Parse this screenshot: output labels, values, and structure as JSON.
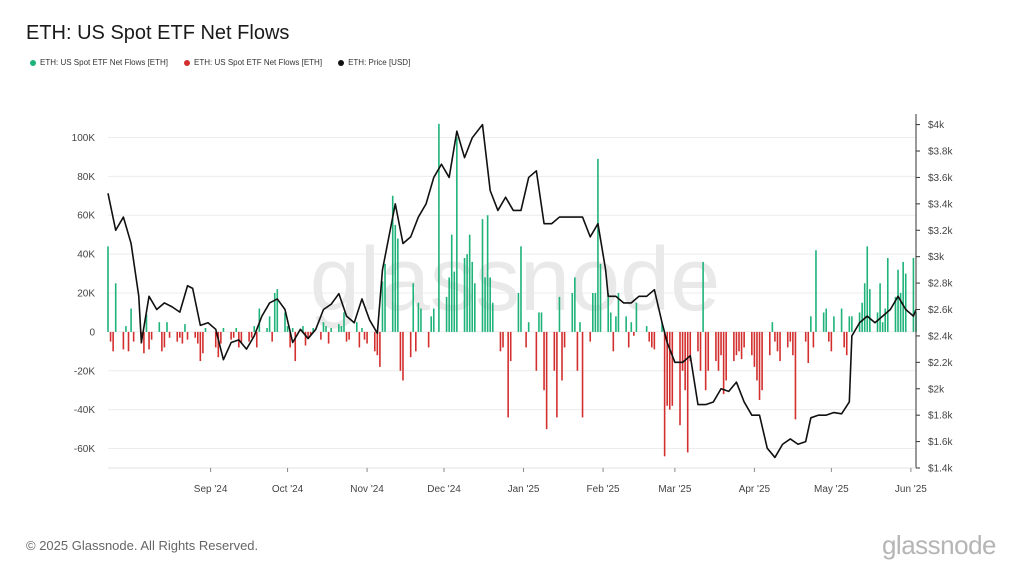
{
  "chart_data": {
    "type": "bar",
    "title": "ETH: US Spot ETF Net Flows",
    "legend": [
      {
        "name": "ETH: US Spot ETF Net Flows [ETH]",
        "color": "#1fb37a"
      },
      {
        "name": "ETH: US Spot ETF Net Flows [ETH]",
        "color": "#d32f2f"
      },
      {
        "name": "ETH: Price [USD]",
        "color": "#111111"
      }
    ],
    "legend_position": "top-left",
    "watermark": "glassnode",
    "grid": true,
    "y_left": {
      "ticks": [
        100000,
        80000,
        60000,
        40000,
        20000,
        0,
        -20000,
        -40000,
        -60000
      ],
      "tick_labels": [
        "100K",
        "80K",
        "60K",
        "40K",
        "20K",
        "0",
        "-20K",
        "-40K",
        "-60K"
      ],
      "range": [
        -70000,
        110000
      ]
    },
    "y_right": {
      "ticks": [
        4000,
        3800,
        3600,
        3400,
        3200,
        3000,
        2800,
        2600,
        2400,
        2200,
        2000,
        1800,
        1600,
        1400
      ],
      "tick_labels": [
        "$4k",
        "$3.8k",
        "$3.6k",
        "$3.4k",
        "$3.2k",
        "$3k",
        "$2.8k",
        "$2.6k",
        "$2.4k",
        "$2.2k",
        "$2k",
        "$1.8k",
        "$1.6k",
        "$1.4k"
      ],
      "range": [
        1400,
        4050
      ]
    },
    "x_axis": {
      "start": "2024-07-23",
      "end": "2025-06-03",
      "ticks": [
        {
          "date": "2024-09-01",
          "label": "Sep '24"
        },
        {
          "date": "2024-10-01",
          "label": "Oct '24"
        },
        {
          "date": "2024-11-01",
          "label": "Nov '24"
        },
        {
          "date": "2024-12-01",
          "label": "Dec '24"
        },
        {
          "date": "2025-01-01",
          "label": "Jan '25"
        },
        {
          "date": "2025-02-01",
          "label": "Feb '25"
        },
        {
          "date": "2025-03-01",
          "label": "Mar '25"
        },
        {
          "date": "2025-04-01",
          "label": "Apr '25"
        },
        {
          "date": "2025-05-01",
          "label": "May '25"
        },
        {
          "date": "2025-06-01",
          "label": "Jun '25"
        }
      ]
    },
    "flows": [
      [
        "2024-07-23",
        44000
      ],
      [
        "2024-07-24",
        -5000
      ],
      [
        "2024-07-25",
        -10000
      ],
      [
        "2024-07-26",
        25000
      ],
      [
        "2024-07-29",
        -9000
      ],
      [
        "2024-07-30",
        3000
      ],
      [
        "2024-07-31",
        -10000
      ],
      [
        "2024-08-01",
        12000
      ],
      [
        "2024-08-02",
        -5000
      ],
      [
        "2024-08-05",
        -6000
      ],
      [
        "2024-08-06",
        -11000
      ],
      [
        "2024-08-07",
        9000
      ],
      [
        "2024-08-08",
        -9000
      ],
      [
        "2024-08-09",
        -4000
      ],
      [
        "2024-08-12",
        5000
      ],
      [
        "2024-08-13",
        -10000
      ],
      [
        "2024-08-14",
        -8000
      ],
      [
        "2024-08-15",
        5000
      ],
      [
        "2024-08-16",
        -3000
      ],
      [
        "2024-08-19",
        -5000
      ],
      [
        "2024-08-20",
        -3000
      ],
      [
        "2024-08-21",
        -6000
      ],
      [
        "2024-08-22",
        4000
      ],
      [
        "2024-08-23",
        -4000
      ],
      [
        "2024-08-26",
        -3000
      ],
      [
        "2024-08-27",
        -6000
      ],
      [
        "2024-08-28",
        -15000
      ],
      [
        "2024-08-29",
        -11000
      ],
      [
        "2024-08-30",
        2000
      ],
      [
        "2024-09-03",
        -8000
      ],
      [
        "2024-09-04",
        -13000
      ],
      [
        "2024-09-05",
        -6000
      ],
      [
        "2024-09-06",
        2000
      ],
      [
        "2024-09-09",
        -4000
      ],
      [
        "2024-09-10",
        -3000
      ],
      [
        "2024-09-11",
        2000
      ],
      [
        "2024-09-12",
        -8000
      ],
      [
        "2024-09-13",
        -6000
      ],
      [
        "2024-09-16",
        -5000
      ],
      [
        "2024-09-17",
        -3000
      ],
      [
        "2024-09-18",
        3000
      ],
      [
        "2024-09-19",
        -8000
      ],
      [
        "2024-09-20",
        12000
      ],
      [
        "2024-09-23",
        2000
      ],
      [
        "2024-09-24",
        8000
      ],
      [
        "2024-09-25",
        -5000
      ],
      [
        "2024-09-26",
        20000
      ],
      [
        "2024-09-27",
        22000
      ],
      [
        "2024-09-30",
        10000
      ],
      [
        "2024-10-01",
        3000
      ],
      [
        "2024-10-02",
        -8000
      ],
      [
        "2024-10-03",
        2000
      ],
      [
        "2024-10-04",
        -15000
      ],
      [
        "2024-10-07",
        3000
      ],
      [
        "2024-10-08",
        -7000
      ],
      [
        "2024-10-09",
        -3000
      ],
      [
        "2024-10-10",
        -2000
      ],
      [
        "2024-10-11",
        2000
      ],
      [
        "2024-10-14",
        -4000
      ],
      [
        "2024-10-15",
        5000
      ],
      [
        "2024-10-16",
        3000
      ],
      [
        "2024-10-17",
        -6000
      ],
      [
        "2024-10-18",
        2000
      ],
      [
        "2024-10-21",
        4000
      ],
      [
        "2024-10-22",
        3000
      ],
      [
        "2024-10-23",
        10000
      ],
      [
        "2024-10-24",
        -5000
      ],
      [
        "2024-10-25",
        -4000
      ],
      [
        "2024-10-28",
        5000
      ],
      [
        "2024-10-29",
        -8000
      ],
      [
        "2024-10-30",
        2000
      ],
      [
        "2024-10-31",
        -4000
      ],
      [
        "2024-11-01",
        -6000
      ],
      [
        "2024-11-04",
        -10000
      ],
      [
        "2024-11-05",
        -12000
      ],
      [
        "2024-11-06",
        -18000
      ],
      [
        "2024-11-07",
        26000
      ],
      [
        "2024-11-08",
        35000
      ],
      [
        "2024-11-11",
        70000
      ],
      [
        "2024-11-12",
        55000
      ],
      [
        "2024-11-13",
        48000
      ],
      [
        "2024-11-14",
        -20000
      ],
      [
        "2024-11-15",
        -25000
      ],
      [
        "2024-11-18",
        -13000
      ],
      [
        "2024-11-19",
        25000
      ],
      [
        "2024-11-20",
        -10000
      ],
      [
        "2024-11-21",
        15000
      ],
      [
        "2024-11-22",
        12000
      ],
      [
        "2024-11-25",
        -8000
      ],
      [
        "2024-11-26",
        8000
      ],
      [
        "2024-11-27",
        12000
      ],
      [
        "2024-11-29",
        107000
      ],
      [
        "2024-12-02",
        18000
      ],
      [
        "2024-12-03",
        28000
      ],
      [
        "2024-12-04",
        50000
      ],
      [
        "2024-12-05",
        31000
      ],
      [
        "2024-12-06",
        100000
      ],
      [
        "2024-12-09",
        38000
      ],
      [
        "2024-12-10",
        40000
      ],
      [
        "2024-12-11",
        50000
      ],
      [
        "2024-12-12",
        36000
      ],
      [
        "2024-12-13",
        25000
      ],
      [
        "2024-12-16",
        58000
      ],
      [
        "2024-12-17",
        28000
      ],
      [
        "2024-12-18",
        60000
      ],
      [
        "2024-12-19",
        28000
      ],
      [
        "2024-12-20",
        15000
      ],
      [
        "2024-12-23",
        -10000
      ],
      [
        "2024-12-24",
        -8000
      ],
      [
        "2024-12-26",
        -44000
      ],
      [
        "2024-12-27",
        -15000
      ],
      [
        "2024-12-30",
        20000
      ],
      [
        "2024-12-31",
        44000
      ],
      [
        "2025-01-02",
        -8000
      ],
      [
        "2025-01-03",
        5000
      ],
      [
        "2025-01-06",
        -20000
      ],
      [
        "2025-01-07",
        10000
      ],
      [
        "2025-01-08",
        10000
      ],
      [
        "2025-01-09",
        -30000
      ],
      [
        "2025-01-10",
        -50000
      ],
      [
        "2025-01-13",
        -20000
      ],
      [
        "2025-01-14",
        -44000
      ],
      [
        "2025-01-15",
        18000
      ],
      [
        "2025-01-16",
        -25000
      ],
      [
        "2025-01-17",
        -8000
      ],
      [
        "2025-01-20",
        20000
      ],
      [
        "2025-01-21",
        28000
      ],
      [
        "2025-01-22",
        -20000
      ],
      [
        "2025-01-23",
        5000
      ],
      [
        "2025-01-24",
        -44000
      ],
      [
        "2025-01-27",
        -5000
      ],
      [
        "2025-01-28",
        20000
      ],
      [
        "2025-01-29",
        20000
      ],
      [
        "2025-01-30",
        89000
      ],
      [
        "2025-01-31",
        35000
      ],
      [
        "2025-02-03",
        20000
      ],
      [
        "2025-02-04",
        10000
      ],
      [
        "2025-02-05",
        -10000
      ],
      [
        "2025-02-06",
        8000
      ],
      [
        "2025-02-07",
        20000
      ],
      [
        "2025-02-10",
        8000
      ],
      [
        "2025-02-11",
        -8000
      ],
      [
        "2025-02-12",
        5000
      ],
      [
        "2025-02-13",
        -2000
      ],
      [
        "2025-02-14",
        15000
      ],
      [
        "2025-02-18",
        3000
      ],
      [
        "2025-02-19",
        -5000
      ],
      [
        "2025-02-20",
        -8000
      ],
      [
        "2025-02-21",
        -9000
      ],
      [
        "2025-02-24",
        5000
      ],
      [
        "2025-02-25",
        -64000
      ],
      [
        "2025-02-26",
        -38000
      ],
      [
        "2025-02-27",
        -40000
      ],
      [
        "2025-02-28",
        -38000
      ],
      [
        "2025-03-03",
        -48000
      ],
      [
        "2025-03-04",
        -20000
      ],
      [
        "2025-03-05",
        -30000
      ],
      [
        "2025-03-06",
        -62000
      ],
      [
        "2025-03-07",
        -15000
      ],
      [
        "2025-03-10",
        -10000
      ],
      [
        "2025-03-11",
        -20000
      ],
      [
        "2025-03-12",
        36000
      ],
      [
        "2025-03-13",
        -30000
      ],
      [
        "2025-03-14",
        -20000
      ],
      [
        "2025-03-17",
        -15000
      ],
      [
        "2025-03-18",
        -20000
      ],
      [
        "2025-03-19",
        -12000
      ],
      [
        "2025-03-20",
        -32000
      ],
      [
        "2025-03-21",
        -25000
      ],
      [
        "2025-03-24",
        -15000
      ],
      [
        "2025-03-25",
        -12000
      ],
      [
        "2025-03-26",
        -10000
      ],
      [
        "2025-03-27",
        -14000
      ],
      [
        "2025-03-28",
        -8000
      ],
      [
        "2025-03-31",
        -12000
      ],
      [
        "2025-04-01",
        -18000
      ],
      [
        "2025-04-02",
        -25000
      ],
      [
        "2025-04-03",
        -35000
      ],
      [
        "2025-04-04",
        -30000
      ],
      [
        "2025-04-07",
        -12000
      ],
      [
        "2025-04-08",
        5000
      ],
      [
        "2025-04-09",
        -5000
      ],
      [
        "2025-04-10",
        -10000
      ],
      [
        "2025-04-11",
        -15000
      ],
      [
        "2025-04-14",
        -8000
      ],
      [
        "2025-04-15",
        -5000
      ],
      [
        "2025-04-16",
        -12000
      ],
      [
        "2025-04-17",
        -45000
      ],
      [
        "2025-04-21",
        -5000
      ],
      [
        "2025-04-22",
        -16000
      ],
      [
        "2025-04-23",
        8000
      ],
      [
        "2025-04-24",
        -8000
      ],
      [
        "2025-04-25",
        42000
      ],
      [
        "2025-04-28",
        10000
      ],
      [
        "2025-04-29",
        12000
      ],
      [
        "2025-04-30",
        -5000
      ],
      [
        "2025-05-01",
        -10000
      ],
      [
        "2025-05-02",
        8000
      ],
      [
        "2025-05-05",
        12000
      ],
      [
        "2025-05-06",
        -8000
      ],
      [
        "2025-05-07",
        -12000
      ],
      [
        "2025-05-08",
        8000
      ],
      [
        "2025-05-09",
        8000
      ],
      [
        "2025-05-12",
        10000
      ],
      [
        "2025-05-13",
        15000
      ],
      [
        "2025-05-14",
        25000
      ],
      [
        "2025-05-15",
        44000
      ],
      [
        "2025-05-16",
        22000
      ],
      [
        "2025-05-19",
        10000
      ],
      [
        "2025-05-20",
        25000
      ],
      [
        "2025-05-21",
        5000
      ],
      [
        "2025-05-22",
        12000
      ],
      [
        "2025-05-23",
        38000
      ],
      [
        "2025-05-26",
        18000
      ],
      [
        "2025-05-27",
        32000
      ],
      [
        "2025-05-28",
        20000
      ],
      [
        "2025-05-29",
        36000
      ],
      [
        "2025-05-30",
        30000
      ],
      [
        "2025-06-02",
        38000
      ],
      [
        "2025-06-03",
        10000
      ]
    ],
    "price": [
      [
        "2024-07-23",
        3480
      ],
      [
        "2024-07-26",
        3200
      ],
      [
        "2024-07-29",
        3300
      ],
      [
        "2024-08-01",
        3100
      ],
      [
        "2024-08-04",
        2700
      ],
      [
        "2024-08-05",
        2350
      ],
      [
        "2024-08-08",
        2700
      ],
      [
        "2024-08-11",
        2600
      ],
      [
        "2024-08-14",
        2650
      ],
      [
        "2024-08-17",
        2620
      ],
      [
        "2024-08-20",
        2580
      ],
      [
        "2024-08-23",
        2780
      ],
      [
        "2024-08-25",
        2760
      ],
      [
        "2024-08-28",
        2480
      ],
      [
        "2024-08-31",
        2500
      ],
      [
        "2024-09-03",
        2450
      ],
      [
        "2024-09-06",
        2220
      ],
      [
        "2024-09-09",
        2350
      ],
      [
        "2024-09-12",
        2370
      ],
      [
        "2024-09-15",
        2300
      ],
      [
        "2024-09-18",
        2400
      ],
      [
        "2024-09-21",
        2550
      ],
      [
        "2024-09-24",
        2650
      ],
      [
        "2024-09-27",
        2680
      ],
      [
        "2024-09-30",
        2600
      ],
      [
        "2024-10-03",
        2350
      ],
      [
        "2024-10-06",
        2450
      ],
      [
        "2024-10-09",
        2380
      ],
      [
        "2024-10-12",
        2450
      ],
      [
        "2024-10-15",
        2600
      ],
      [
        "2024-10-18",
        2640
      ],
      [
        "2024-10-21",
        2720
      ],
      [
        "2024-10-24",
        2550
      ],
      [
        "2024-10-27",
        2500
      ],
      [
        "2024-10-30",
        2680
      ],
      [
        "2024-11-02",
        2520
      ],
      [
        "2024-11-05",
        2420
      ],
      [
        "2024-11-07",
        2900
      ],
      [
        "2024-11-10",
        3200
      ],
      [
        "2024-11-12",
        3400
      ],
      [
        "2024-11-15",
        3100
      ],
      [
        "2024-11-18",
        3150
      ],
      [
        "2024-11-21",
        3300
      ],
      [
        "2024-11-24",
        3400
      ],
      [
        "2024-11-27",
        3600
      ],
      [
        "2024-11-30",
        3700
      ],
      [
        "2024-12-03",
        3600
      ],
      [
        "2024-12-06",
        3950
      ],
      [
        "2024-12-09",
        3750
      ],
      [
        "2024-12-12",
        3900
      ],
      [
        "2024-12-16",
        4000
      ],
      [
        "2024-12-19",
        3500
      ],
      [
        "2024-12-22",
        3350
      ],
      [
        "2024-12-25",
        3450
      ],
      [
        "2024-12-28",
        3350
      ],
      [
        "2024-12-31",
        3350
      ],
      [
        "2025-01-03",
        3600
      ],
      [
        "2025-01-06",
        3650
      ],
      [
        "2025-01-09",
        3250
      ],
      [
        "2025-01-12",
        3250
      ],
      [
        "2025-01-15",
        3300
      ],
      [
        "2025-01-18",
        3300
      ],
      [
        "2025-01-21",
        3300
      ],
      [
        "2025-01-24",
        3300
      ],
      [
        "2025-01-27",
        3150
      ],
      [
        "2025-01-30",
        3250
      ],
      [
        "2025-02-02",
        2900
      ],
      [
        "2025-02-03",
        2700
      ],
      [
        "2025-02-06",
        2700
      ],
      [
        "2025-02-09",
        2650
      ],
      [
        "2025-02-12",
        2650
      ],
      [
        "2025-02-15",
        2700
      ],
      [
        "2025-02-18",
        2700
      ],
      [
        "2025-02-21",
        2750
      ],
      [
        "2025-02-24",
        2500
      ],
      [
        "2025-02-26",
        2350
      ],
      [
        "2025-03-01",
        2200
      ],
      [
        "2025-03-04",
        2200
      ],
      [
        "2025-03-07",
        2250
      ],
      [
        "2025-03-10",
        1880
      ],
      [
        "2025-03-13",
        1880
      ],
      [
        "2025-03-16",
        1900
      ],
      [
        "2025-03-19",
        2000
      ],
      [
        "2025-03-22",
        1980
      ],
      [
        "2025-03-25",
        2050
      ],
      [
        "2025-03-28",
        1900
      ],
      [
        "2025-03-31",
        1800
      ],
      [
        "2025-04-03",
        1800
      ],
      [
        "2025-04-06",
        1550
      ],
      [
        "2025-04-09",
        1480
      ],
      [
        "2025-04-12",
        1580
      ],
      [
        "2025-04-15",
        1620
      ],
      [
        "2025-04-18",
        1580
      ],
      [
        "2025-04-21",
        1600
      ],
      [
        "2025-04-23",
        1780
      ],
      [
        "2025-04-26",
        1800
      ],
      [
        "2025-04-29",
        1800
      ],
      [
        "2025-05-02",
        1820
      ],
      [
        "2025-05-05",
        1810
      ],
      [
        "2025-05-08",
        1900
      ],
      [
        "2025-05-09",
        2400
      ],
      [
        "2025-05-12",
        2500
      ],
      [
        "2025-05-15",
        2550
      ],
      [
        "2025-05-18",
        2500
      ],
      [
        "2025-05-21",
        2550
      ],
      [
        "2025-05-24",
        2600
      ],
      [
        "2025-05-27",
        2700
      ],
      [
        "2025-05-30",
        2600
      ],
      [
        "2025-06-02",
        2550
      ],
      [
        "2025-06-03",
        2600
      ]
    ]
  },
  "footer": {
    "copyright": "© 2025 Glassnode. All Rights Reserved.",
    "brand": "glassnode"
  }
}
